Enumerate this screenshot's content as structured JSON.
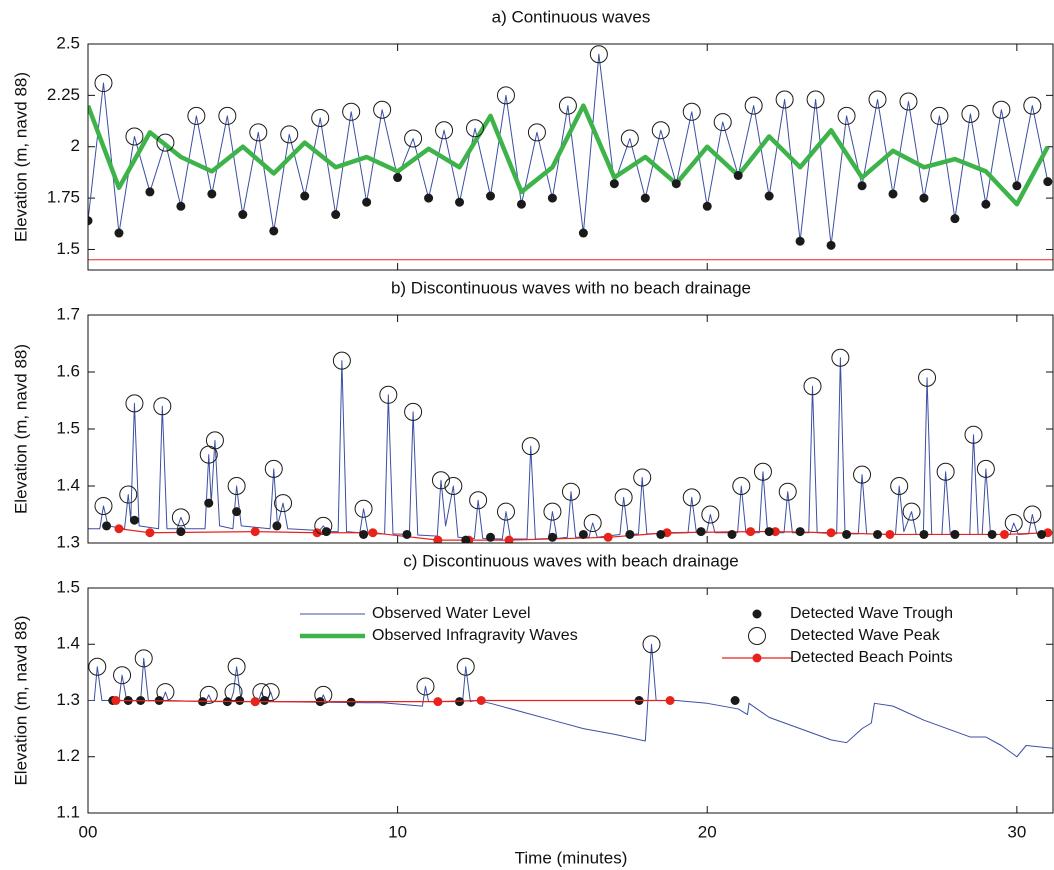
{
  "chart_data": [
    {
      "type": "line",
      "title": "a) Continuous waves",
      "ylabel": "Elevation (m, navd 88)",
      "xlim": [
        0,
        31.2
      ],
      "ylim": [
        1.4,
        2.5
      ],
      "yticks": [
        1.5,
        1.75,
        2,
        2.25,
        2.5
      ],
      "series": [
        {
          "kind": "line",
          "color": "#3b4fa3",
          "width": 1,
          "x": [
            0,
            0.5,
            1,
            1.5,
            2,
            2.5,
            3,
            3.5,
            4,
            4.5,
            5,
            5.5,
            6,
            6.5,
            7,
            7.5,
            8,
            8.5,
            9,
            9.5,
            10,
            10.5,
            11,
            11.5,
            12,
            12.5,
            13,
            13.5,
            14,
            14.5,
            15,
            15.5,
            16,
            16.5,
            17,
            17.5,
            18,
            18.5,
            19,
            19.5,
            20,
            20.5,
            21,
            21.5,
            22,
            22.5,
            23,
            23.5,
            24,
            24.5,
            25,
            25.5,
            26,
            26.5,
            27,
            27.5,
            28,
            28.5,
            29,
            29.5,
            30,
            30.5,
            31
          ],
          "values": [
            1.64,
            2.31,
            1.58,
            2.05,
            1.78,
            2.02,
            1.71,
            2.15,
            1.77,
            2.15,
            1.67,
            2.07,
            1.59,
            2.06,
            1.76,
            2.14,
            1.67,
            2.17,
            1.73,
            2.18,
            1.85,
            2.04,
            1.75,
            2.08,
            1.73,
            2.09,
            1.76,
            2.25,
            1.72,
            2.07,
            1.75,
            2.2,
            1.58,
            2.45,
            1.82,
            2.04,
            1.75,
            2.08,
            1.82,
            2.17,
            1.71,
            2.12,
            1.86,
            2.2,
            1.76,
            2.23,
            1.54,
            2.23,
            1.52,
            2.15,
            1.81,
            2.23,
            1.77,
            2.22,
            1.75,
            2.15,
            1.65,
            2.16,
            1.72,
            2.18,
            1.81,
            2.2,
            1.83
          ]
        },
        {
          "kind": "line",
          "color": "#3db34a",
          "width": 4.5,
          "x": [
            0,
            1,
            2,
            3,
            4,
            5,
            6,
            7,
            8,
            9,
            10,
            11,
            12,
            13,
            14,
            15,
            16,
            17,
            18,
            19,
            20,
            21,
            22,
            23,
            24,
            25,
            26,
            27,
            28,
            29,
            30,
            31
          ],
          "values": [
            2.2,
            1.8,
            2.07,
            1.95,
            1.88,
            2.0,
            1.87,
            2.02,
            1.9,
            1.95,
            1.88,
            1.99,
            1.9,
            2.15,
            1.78,
            1.9,
            2.2,
            1.85,
            1.95,
            1.82,
            2.0,
            1.86,
            2.05,
            1.9,
            2.08,
            1.85,
            1.98,
            1.9,
            1.94,
            1.88,
            1.72,
            2.0
          ]
        },
        {
          "kind": "dots",
          "color": "#1a1a1a",
          "x": [
            0,
            1,
            2,
            3,
            4,
            5,
            6,
            7,
            8,
            9,
            10,
            11,
            12,
            13,
            14,
            15,
            16,
            17,
            18,
            19,
            20,
            21,
            22,
            23,
            24,
            25,
            26,
            27,
            28,
            29,
            30,
            31
          ],
          "values": [
            1.64,
            1.58,
            1.78,
            1.71,
            1.77,
            1.67,
            1.59,
            1.76,
            1.67,
            1.73,
            1.85,
            1.75,
            1.73,
            1.76,
            1.72,
            1.75,
            1.58,
            1.82,
            1.75,
            1.82,
            1.71,
            1.86,
            1.76,
            1.54,
            1.52,
            1.81,
            1.77,
            1.75,
            1.65,
            1.72,
            1.81,
            1.83
          ]
        },
        {
          "kind": "circles",
          "color": "#1a1a1a",
          "x": [
            0.5,
            1.5,
            2.5,
            3.5,
            4.5,
            5.5,
            6.5,
            7.5,
            8.5,
            9.5,
            10.5,
            11.5,
            12.5,
            13.5,
            14.5,
            15.5,
            16.5,
            17.5,
            18.5,
            19.5,
            20.5,
            21.5,
            22.5,
            23.5,
            24.5,
            25.5,
            26.5,
            27.5,
            28.5,
            29.5,
            30.5
          ],
          "values": [
            2.31,
            2.05,
            2.02,
            2.15,
            2.15,
            2.07,
            2.06,
            2.14,
            2.17,
            2.18,
            2.04,
            2.08,
            2.09,
            2.25,
            2.07,
            2.2,
            2.45,
            2.04,
            2.08,
            2.17,
            2.12,
            2.2,
            2.23,
            2.23,
            2.15,
            2.23,
            2.22,
            2.15,
            2.16,
            2.18,
            2.2
          ]
        },
        {
          "kind": "line",
          "color": "#e8231b",
          "width": 1,
          "x": [
            0,
            31.2
          ],
          "values": [
            1.45,
            1.45
          ]
        }
      ]
    },
    {
      "type": "line",
      "title": "b) Discontinuous waves with no beach drainage",
      "ylabel": "Elevation (m, navd 88)",
      "xlim": [
        0,
        31.2
      ],
      "ylim": [
        1.3,
        1.7
      ],
      "yticks": [
        1.3,
        1.4,
        1.5,
        1.6,
        1.7
      ],
      "series": [
        {
          "kind": "line",
          "color": "#3b4fa3",
          "width": 1,
          "x": [
            0,
            0.38,
            0.5,
            0.65,
            1.18,
            1.3,
            1.38,
            1.5,
            1.65,
            2.28,
            2.4,
            2.55,
            2.88,
            3.0,
            3.15,
            3.78,
            3.9,
            3.98,
            4.1,
            4.25,
            4.68,
            4.8,
            4.95,
            5.88,
            6.0,
            6.12,
            6.3,
            6.45,
            7.48,
            7.6,
            7.75,
            8.08,
            8.2,
            8.35,
            8.78,
            8.9,
            9.05,
            9.58,
            9.7,
            9.85,
            10.38,
            10.5,
            10.65,
            11.28,
            11.4,
            11.55,
            11.8,
            11.95,
            12.48,
            12.6,
            12.75,
            13.38,
            13.5,
            13.65,
            14.18,
            14.3,
            14.45,
            14.88,
            15.0,
            15.15,
            15.48,
            15.6,
            15.75,
            16.18,
            16.3,
            16.45,
            17.18,
            17.3,
            17.45,
            17.78,
            17.9,
            18.05,
            19.38,
            19.5,
            19.65,
            19.98,
            20.1,
            20.25,
            20.98,
            21.1,
            21.25,
            21.68,
            21.8,
            21.95,
            22.48,
            22.6,
            22.75,
            23.28,
            23.4,
            23.55,
            24.18,
            24.3,
            24.45,
            24.88,
            25.0,
            25.15,
            26.08,
            26.2,
            26.35,
            26.6,
            26.75,
            26.98,
            27.1,
            27.25,
            27.58,
            27.7,
            27.85,
            28.48,
            28.6,
            28.75,
            28.88,
            29.0,
            29.15,
            29.78,
            29.9,
            30.05,
            30.38,
            30.5,
            30.65,
            31.2
          ],
          "values": [
            1.325,
            1.325,
            1.365,
            1.33,
            1.325,
            1.385,
            1.34,
            1.545,
            1.33,
            1.325,
            1.54,
            1.325,
            1.325,
            1.345,
            1.325,
            1.325,
            1.455,
            1.37,
            1.48,
            1.33,
            1.325,
            1.4,
            1.33,
            1.325,
            1.43,
            1.33,
            1.37,
            1.325,
            1.322,
            1.33,
            1.32,
            1.32,
            1.62,
            1.32,
            1.318,
            1.36,
            1.316,
            1.316,
            1.56,
            1.316,
            1.315,
            1.53,
            1.314,
            1.312,
            1.41,
            1.33,
            1.4,
            1.31,
            1.308,
            1.375,
            1.308,
            1.307,
            1.355,
            1.307,
            1.307,
            1.47,
            1.307,
            1.308,
            1.355,
            1.308,
            1.31,
            1.39,
            1.31,
            1.31,
            1.335,
            1.31,
            1.315,
            1.38,
            1.315,
            1.316,
            1.415,
            1.316,
            1.318,
            1.38,
            1.318,
            1.318,
            1.35,
            1.318,
            1.318,
            1.4,
            1.318,
            1.318,
            1.425,
            1.318,
            1.318,
            1.39,
            1.318,
            1.318,
            1.575,
            1.318,
            1.316,
            1.625,
            1.316,
            1.316,
            1.42,
            1.316,
            1.315,
            1.4,
            1.32,
            1.355,
            1.315,
            1.315,
            1.59,
            1.315,
            1.315,
            1.425,
            1.315,
            1.315,
            1.49,
            1.315,
            1.315,
            1.43,
            1.315,
            1.315,
            1.335,
            1.315,
            1.316,
            1.35,
            1.316,
            1.318
          ]
        },
        {
          "kind": "linedots",
          "color": "#e8231b",
          "x": [
            1.0,
            2.0,
            5.4,
            7.4,
            9.2,
            11.3,
            12.3,
            13.6,
            16.8,
            18.7,
            21.4,
            22.2,
            24.0,
            25.9,
            28.0,
            29.6,
            31.0
          ],
          "values": [
            1.325,
            1.318,
            1.32,
            1.318,
            1.318,
            1.305,
            1.305,
            1.305,
            1.31,
            1.318,
            1.32,
            1.32,
            1.318,
            1.315,
            1.315,
            1.315,
            1.318
          ]
        },
        {
          "kind": "dots",
          "color": "#1a1a1a",
          "x": [
            0.6,
            1.5,
            3.0,
            3.9,
            4.8,
            6.1,
            7.7,
            8.9,
            10.3,
            12.2,
            13.0,
            15.0,
            16.0,
            17.5,
            18.5,
            19.8,
            20.8,
            22.0,
            23.0,
            24.5,
            25.5,
            27.0,
            28.0,
            29.2,
            30.8
          ],
          "values": [
            1.33,
            1.34,
            1.32,
            1.37,
            1.355,
            1.33,
            1.32,
            1.315,
            1.315,
            1.305,
            1.31,
            1.31,
            1.315,
            1.315,
            1.315,
            1.32,
            1.315,
            1.32,
            1.32,
            1.315,
            1.315,
            1.315,
            1.315,
            1.315,
            1.315
          ]
        },
        {
          "kind": "circles",
          "color": "#1a1a1a",
          "x": [
            0.5,
            1.3,
            1.5,
            2.4,
            3.0,
            3.9,
            4.1,
            4.8,
            6.0,
            6.3,
            7.6,
            8.2,
            8.9,
            9.7,
            10.5,
            11.4,
            11.8,
            12.6,
            13.5,
            14.3,
            15.0,
            15.6,
            16.3,
            17.3,
            17.9,
            19.5,
            20.1,
            21.1,
            21.8,
            22.6,
            23.4,
            24.3,
            25.0,
            26.2,
            26.6,
            27.1,
            27.7,
            28.6,
            29.0,
            29.9,
            30.5
          ],
          "values": [
            1.365,
            1.385,
            1.545,
            1.54,
            1.345,
            1.455,
            1.48,
            1.4,
            1.43,
            1.37,
            1.33,
            1.62,
            1.36,
            1.56,
            1.53,
            1.41,
            1.4,
            1.375,
            1.355,
            1.47,
            1.355,
            1.39,
            1.335,
            1.38,
            1.415,
            1.38,
            1.35,
            1.4,
            1.425,
            1.39,
            1.575,
            1.625,
            1.42,
            1.4,
            1.355,
            1.59,
            1.425,
            1.49,
            1.43,
            1.335,
            1.35
          ]
        }
      ]
    },
    {
      "type": "line",
      "title": "c) Discontinuous waves with beach drainage",
      "ylabel": "Elevation (m, navd 88)",
      "xlabel": "Time (minutes)",
      "legend": "upper center",
      "xlim": [
        0,
        31.2
      ],
      "xticks": [
        {
          "value": 0,
          "label": "00"
        },
        10,
        20,
        30
      ],
      "ylim": [
        1.1,
        1.5
      ],
      "yticks": [
        1.1,
        1.2,
        1.3,
        1.4,
        1.5
      ],
      "series": [
        {
          "name": "Observed Water Level",
          "kind": "line",
          "color": "#3b4fa3",
          "width": 1,
          "x": [
            0,
            0.2,
            0.3,
            0.45,
            1.0,
            1.1,
            1.25,
            1.7,
            1.8,
            1.95,
            2.4,
            2.5,
            2.6,
            3.8,
            3.9,
            4.0,
            4.6,
            4.7,
            4.8,
            4.95,
            5.5,
            5.6,
            5.7,
            5.8,
            5.9,
            6.0,
            7.5,
            7.6,
            7.7,
            9,
            9.5,
            10.8,
            10.9,
            11.0,
            12.1,
            12.2,
            12.35,
            12.5,
            13,
            14,
            15,
            16,
            17,
            18,
            18.2,
            18.35,
            19,
            20,
            21,
            21.3,
            21.35,
            22,
            23,
            24,
            24.5,
            25,
            25.3,
            25.4,
            26,
            27,
            28,
            28.5,
            29,
            29.5,
            30,
            30.3,
            31.2
          ],
          "values": [
            1.3,
            1.3,
            1.36,
            1.3,
            1.3,
            1.345,
            1.3,
            1.3,
            1.375,
            1.3,
            1.3,
            1.315,
            1.3,
            1.298,
            1.31,
            1.298,
            1.298,
            1.315,
            1.36,
            1.298,
            1.298,
            1.315,
            1.3,
            1.3,
            1.315,
            1.298,
            1.297,
            1.31,
            1.297,
            1.296,
            1.296,
            1.29,
            1.325,
            1.298,
            1.298,
            1.36,
            1.298,
            1.3,
            1.295,
            1.28,
            1.265,
            1.25,
            1.24,
            1.228,
            1.4,
            1.3,
            1.3,
            1.295,
            1.285,
            1.275,
            1.295,
            1.27,
            1.25,
            1.23,
            1.225,
            1.25,
            1.26,
            1.295,
            1.29,
            1.265,
            1.245,
            1.235,
            1.235,
            1.22,
            1.2,
            1.22,
            1.215
          ]
        },
        {
          "name": "Observed Infragravity Waves",
          "kind": "line",
          "color": "#3db34a",
          "width": 4.5,
          "x": [],
          "values": []
        },
        {
          "name": "Detected Wave Trough",
          "kind": "dots",
          "color": "#1a1a1a",
          "x": [
            0.8,
            1.3,
            1.7,
            2.3,
            3.7,
            4.5,
            4.9,
            5.4,
            5.7,
            7.5,
            8.5,
            12.0,
            17.8,
            20.9
          ],
          "values": [
            1.3,
            1.3,
            1.3,
            1.3,
            1.298,
            1.298,
            1.3,
            1.298,
            1.3,
            1.298,
            1.297,
            1.298,
            1.3,
            1.3
          ]
        },
        {
          "name": "Detected Wave Peak",
          "kind": "circles",
          "color": "#1a1a1a",
          "x": [
            0.3,
            1.1,
            1.8,
            2.5,
            3.9,
            4.7,
            4.8,
            5.6,
            5.9,
            7.6,
            10.9,
            12.2,
            18.2
          ],
          "values": [
            1.36,
            1.345,
            1.375,
            1.315,
            1.31,
            1.315,
            1.36,
            1.315,
            1.315,
            1.31,
            1.325,
            1.36,
            1.4
          ]
        },
        {
          "name": "Detected Beach Points",
          "kind": "linedots",
          "color": "#e8231b",
          "x": [
            0.9,
            5.4,
            11.3,
            12.7,
            18.8
          ],
          "values": [
            1.3,
            1.298,
            1.298,
            1.3,
            1.3
          ]
        }
      ]
    }
  ]
}
